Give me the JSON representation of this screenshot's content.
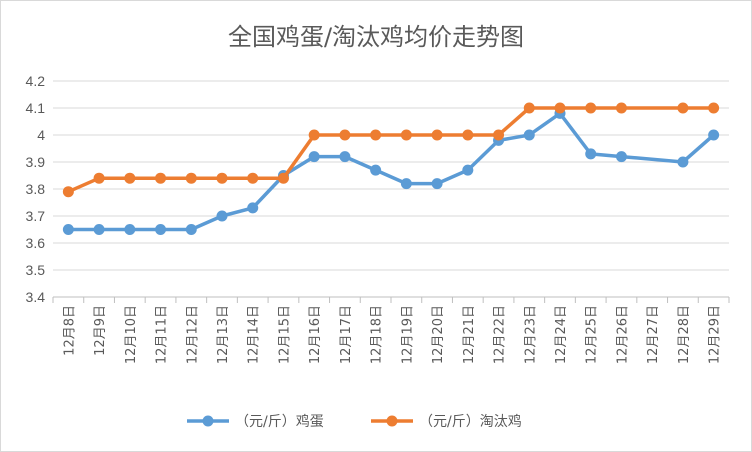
{
  "chart_data": {
    "type": "line",
    "title": "全国鸡蛋/淘汰鸡均价走势图",
    "xlabel": "",
    "ylabel": "",
    "ylim": [
      3.4,
      4.2
    ],
    "yticks": [
      "3.4",
      "3.5",
      "3.6",
      "3.7",
      "3.8",
      "3.9",
      "4",
      "4.1",
      "4.2"
    ],
    "categories": [
      "12月8日",
      "12月9日",
      "12月10日",
      "12月11日",
      "12月12日",
      "12月13日",
      "12月14日",
      "12月15日",
      "12月16日",
      "12月17日",
      "12月18日",
      "12月19日",
      "12月20日",
      "12月21日",
      "12月22日",
      "12月23日",
      "12月24日",
      "12月25日",
      "12月26日",
      "12月27日",
      "12月28日",
      "12月29日"
    ],
    "series": [
      {
        "name": "（元/斤）鸡蛋",
        "color": "#5B9BD5",
        "values": [
          3.65,
          3.65,
          3.65,
          3.65,
          3.65,
          3.7,
          3.73,
          3.85,
          3.92,
          3.92,
          3.87,
          3.82,
          3.82,
          3.87,
          3.98,
          4.0,
          4.08,
          3.93,
          3.92,
          null,
          3.9,
          4.0
        ]
      },
      {
        "name": "（元/斤）淘汰鸡",
        "color": "#ED7D31",
        "values": [
          3.79,
          3.84,
          3.84,
          3.84,
          3.84,
          3.84,
          3.84,
          3.84,
          4.0,
          4.0,
          4.0,
          4.0,
          4.0,
          4.0,
          4.0,
          4.1,
          4.1,
          4.1,
          4.1,
          null,
          4.1,
          4.1
        ]
      }
    ],
    "grid": true,
    "legend_position": "bottom"
  }
}
